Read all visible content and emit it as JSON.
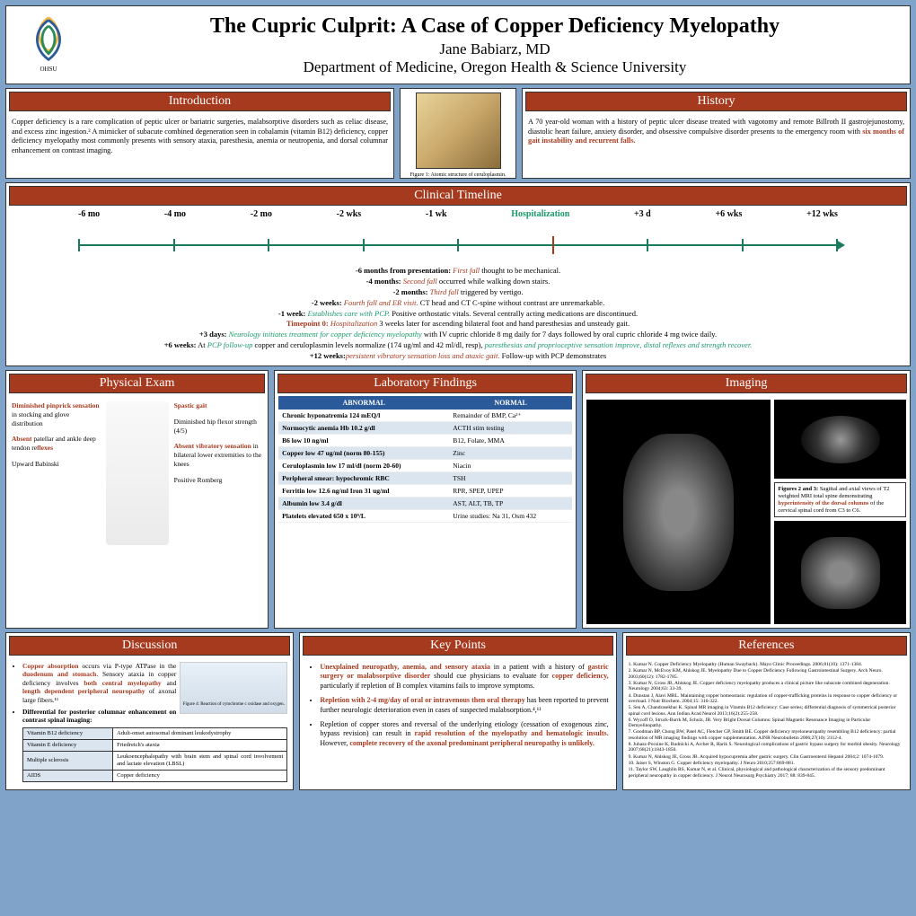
{
  "header": {
    "logo_label": "OHSU",
    "title": "The Cupric Culprit: A Case of Copper Deficiency Myelopathy",
    "author": "Jane Babiarz, MD",
    "department": "Department of Medicine, Oregon Health & Science University"
  },
  "intro": {
    "heading": "Introduction",
    "text": "Copper deficiency is a rare complication of peptic ulcer or bariatric surgeries, malabsorptive disorders such as celiac disease, and excess zinc ingestion.² A mimicker of subacute combined degeneration seen in cobalamin (vitamin B12) deficiency, copper deficiency myelopathy most commonly presents with sensory ataxia, paresthesia, anemia or neutropenia, and dorsal columnar enhancement on contrast imaging."
  },
  "figure1_caption": "Figure 1: Atomic structure of ceruloplasmin.",
  "history": {
    "heading": "History",
    "text_pre": "A 70 year-old woman with a history of peptic ulcer disease treated with vagotomy and remote Billroth II gastrojejunostomy, diastolic heart failure, anxiety disorder, and obsessive compulsive disorder presents to the emergency room with ",
    "text_red": "six months of gait instability and recurrent falls."
  },
  "timeline": {
    "heading": "Clinical Timeline",
    "labels": [
      "-6 mo",
      "-4 mo",
      "-2 mo",
      "-2 wks",
      "-1 wk",
      "Hospitalization",
      "+3 d",
      "+6 wks",
      "+12 wks"
    ],
    "events": [
      {
        "label": "-6 months from presentation:",
        "red": " First fall ",
        "rest": "thought to be mechanical."
      },
      {
        "label": "-4 months:",
        "red": " Second fall ",
        "rest": "occurred while walking down stairs."
      },
      {
        "label": "-2 months:",
        "red": " Third fall ",
        "rest": "triggered by vertigo."
      },
      {
        "label": "-2 weeks:",
        "red": " Fourth fall and ER visit.",
        "rest": " CT head and CT C-spine without contrast are unremarkable."
      },
      {
        "label": "-1 week:",
        "green": " Establishes care with PCP.",
        "rest": " Positive orthostatic vitals. Several centrally acting medications are discontinued."
      },
      {
        "label_red": "Timepoint 0: ",
        "red": "Hospitalization",
        "rest": " 3 weeks later for ascending bilateral foot and hand paresthesias and unsteady gait."
      },
      {
        "label": "+3 days:",
        "green": " Neurology initiates treatment for copper deficiency myelopathy",
        "rest": " with IV cupric chloride 8 mg daily for 7 days followed by oral cupric chloride 4 mg twice daily."
      },
      {
        "label": "+6 weeks:",
        "rest_pre": " At ",
        "green": "PCP follow-up",
        "rest_mid": " copper and ceruloplasmin levels normalize (174 ug/ml and 42 ml/dl, resp), ",
        "green2": "paresthesias and proprioceptive sensation improve, distal reflexes and strength recover."
      },
      {
        "label": "+12 weeks:",
        "rest": " Follow-up with PCP demonstrates ",
        "red": "persistent vibratory sensation loss and ataxic gait."
      }
    ]
  },
  "pe": {
    "heading": "Physical Exam",
    "left": [
      {
        "red": "Diminished pinprick sensation",
        "rest": " in stocking and glove distribution"
      },
      {
        "red": "Absent",
        "rest": " patellar and ankle deep tendon re",
        "red2": "flexes"
      },
      {
        "rest": "Upward Babinski"
      }
    ],
    "right": [
      {
        "red": "Spastic gait"
      },
      {
        "rest": "Diminished hip flexor strength (4/5)"
      },
      {
        "red": "Absent vibratory sensation",
        "rest": " in bilateral lower extremities to the knees"
      },
      {
        "rest": "Positive Romberg"
      }
    ]
  },
  "lab": {
    "heading": "Laboratory Findings",
    "col_abnormal": "ABNORMAL",
    "col_normal": "NORMAL",
    "rows": [
      [
        "Chronic hyponatremia 124 mEQ/l",
        "Remainder of BMP, Ca²⁺"
      ],
      [
        "Normocytic anemia Hb 10.2 g/dl",
        "ACTH stim testing"
      ],
      [
        "B6 low 10 ng/ml",
        "B12, Folate, MMA"
      ],
      [
        "Copper low 47 ug/ml (norm 80-155)",
        "Zinc"
      ],
      [
        "Ceruloplasmin low 17 ml/dl (norm 20-60)",
        "Niacin"
      ],
      [
        "Peripheral smear: hypochromic RBC",
        "TSH"
      ],
      [
        "Ferritin low 12.6 ng/ml  Iron 31 ug/ml",
        "RPR, SPEP, UPEP"
      ],
      [
        "Albumin low 3.4 g/dl",
        "AST, ALT, TB, TP"
      ],
      [
        "Platelets elevated 650 x 10⁹/L",
        "Urine studies: Na 31, Osm 432"
      ]
    ]
  },
  "imaging": {
    "heading": "Imaging",
    "caption_pre": "Figures 2 and 3: ",
    "caption_mid": "Sagittal and axial views of T2 weighted MRI total spine demonstrating ",
    "caption_red": "hyperintensity of the dorsal columns",
    "caption_post": " of the cervical spinal cord from C3 to C6."
  },
  "discussion": {
    "heading": "Discussion",
    "fig_caption": "Figure 4: Reaction of cytochrome c oxidase and oxygen.",
    "bullet1_pre": "Copper absorption",
    "bullet1_mid": " occurs via P-type ATPase in the ",
    "bullet1_red2": "duodenum and stomach",
    "bullet1_post": ". Sensory ataxia in copper deficiency involves ",
    "bullet1_red3": "both central myelopathy",
    "bullet1_and": " and ",
    "bullet1_red4": "length dependent peripheral neuropathy",
    "bullet1_end": " of axonal large fibers.¹¹",
    "bullet2": "Differential for posterior columnar enhancement on contrast spinal imaging:",
    "diff_table": [
      [
        "Vitamin B12 deficiency",
        "Adult-onset autosomal dominant leukodystrophy"
      ],
      [
        "Vitamin E deficiency",
        "Friedreich's ataxia"
      ],
      [
        "Multiple sclerosis",
        "Leukoencephalopathy with brain stem and spinal cord involvement and lactate elevation (LBSL)"
      ],
      [
        "AIDS",
        "Copper deficiency"
      ]
    ]
  },
  "keypoints": {
    "heading": "Key Points",
    "kp1_red": "Unexplained neuropathy, anemia, and sensory ataxia",
    "kp1_mid": " in a patient with a history of ",
    "kp1_red2": "gastric surgery or malabsorptive disorder",
    "kp1_mid2": " should cue physicians to evaluate for ",
    "kp1_red3": "copper deficiency,",
    "kp1_end": " particularly if repletion of B complex vitamins fails to improve symptoms.",
    "kp2_red": "Repletion with 2-4 mg/day of oral or intravenous then oral therapy",
    "kp2_end": " has been reported to prevent further neurologic deterioration even in cases of suspected malabsorption.⁴,¹¹",
    "kp3_pre": "Repletion of copper stores and reversal of the underlying etiology (cessation of exogenous zinc, bypass revision) can result in ",
    "kp3_red": "rapid resolution of the myelopathy and hematologic insults.",
    "kp3_mid": " However, ",
    "kp3_red2": "complete recovery of the axonal predominant peripheral neuropathy is unlikely."
  },
  "references": {
    "heading": "References",
    "items": [
      "1. Kumar N. Copper Deficiency Myelopathy (Human Swayback). Mayo Clinic Proceedings. 2006;81(10): 1371-1384.",
      "2. Kumar N, McEvoy KM, Ahlskog JE. Myelopathy Due to Copper Deficiency Following Gastrointestinal Surgery. Arch Neuro. 2003;60(12): 1782-1785.",
      "3. Kumar N, Gross JB, Ahlskog JE. Copper deficiency myelopathy produces a clinical picture like subacute combined degeneration. Neurology 2004;63: 33-39.",
      "4. Dunstan J, Alavi MRL. Maintaining copper homeostasis: regulation of copper-trafficking proteins in response to copper deficiency or overload. J Nutr Biochem. 2004;15: 316-322.",
      "5. Sen A, Chandrasekhar K. Spinal MR imaging in Vitamin B12 deficiency: Case series; differential diagnosis of symmetrical posterior spinal cord lesions. Ann Indian Acad Neurol 2013;16(2):255-258.",
      "6. Wycoff O, Struck-Burrk M, Schulz, JB. Very Bright Dorsal Columns: Spinal Magnetic Resonance Imaging in Particular Demyelinopathy.",
      "7. Goodman BP, Chong BW, Patel AC, Fletcher GP, Smith BE. Copper deficiency myeloneuropathy resembling B12 deficiency: partial resolution of MR imaging findings with copper supplementation. AJNR Neurobulletin 2006;27(10): 2112-4.",
      "8. Juhasz-Pocsine K, Rudnicki A, Archer R, Harik S. Neurological complications of gastric bypass surgery for morbid obesity. Neurology 2007;68(21):1843-1850.",
      "9. Kumar N, Ahlskog JE, Gross JB. Acquired hypocupremia after gastric surgery. Clin Gastroenterol Hepatol 2004;2: 1074-1079.",
      "10. Jaiser S, Winston G. Copper deficiency myelopathy. J Neuro 2010;257:869-881.",
      "11. Taylor SW, Laughlin RS, Kumar N, et al. Clinical, physiological and pathological characterization of the sensory predominant peripheral neuropathy in copper deficiency. J Neurol Neurosurg Psychiatry 2017; 88: 839-845."
    ]
  }
}
